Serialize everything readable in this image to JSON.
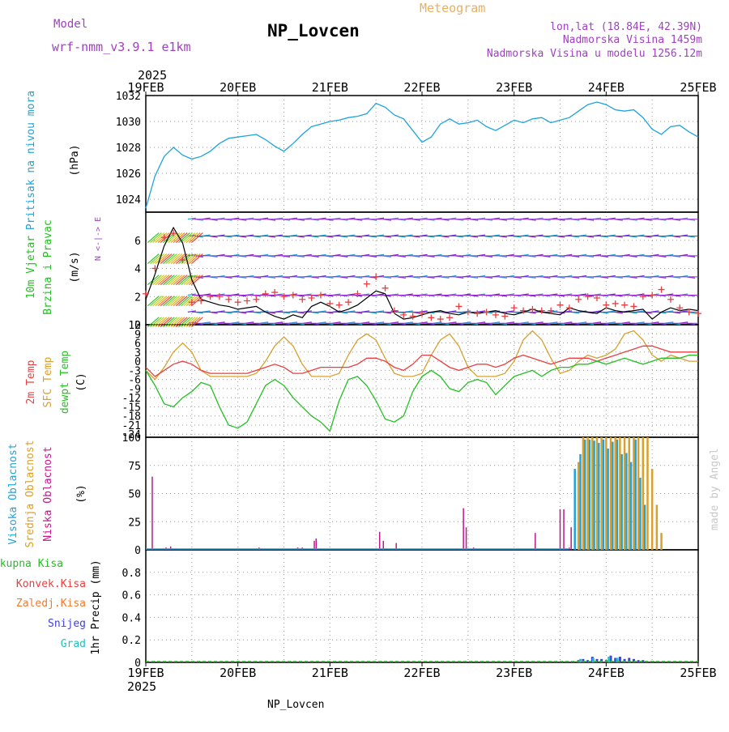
{
  "header": {
    "model_label": "Model",
    "model_name": "wrf-nmm_v3.9.1 e1km",
    "station": "NP_Lovcen",
    "product": "Meteogram",
    "coords": "lon,lat (18.84E, 42.39N)",
    "elevation": "Nadmorska Visina 1459m",
    "model_elevation": "Nadmorska Visina u modelu 1256.12m",
    "credit": "made by Angel",
    "footer_station": "NP_Lovcen"
  },
  "time_axis": {
    "year_top": "2025",
    "year_bottom": "2025",
    "ticks": [
      "19FEB",
      "20FEB",
      "21FEB",
      "22FEB",
      "23FEB",
      "24FEB",
      "25FEB"
    ]
  },
  "colors": {
    "pressure": "#1fa3dc",
    "wind_speed": "#000000",
    "gust_marker": "#e84040",
    "t2m": "#e84040",
    "tsfc": "#d9a030",
    "dewpoint": "#22c022",
    "cloud_high": "#1fa3dc",
    "cloud_mid": "#d9a030",
    "cloud_low": "#c0188a",
    "precip_total": "#22c022",
    "precip_conv": "#e84040",
    "precip_frozen": "#f07a30",
    "precip_snow": "#4040e0",
    "precip_graupel": "#20c0c0",
    "header_purple": "#a040c0",
    "meteogram_orange": "#e8b060"
  },
  "chart_data": [
    {
      "type": "line",
      "panel": "pressure",
      "ylabels": [
        "Pritisak na nivou mora",
        "(hPa)"
      ],
      "ylim": [
        1023,
        1032
      ],
      "yticks": [
        "1024",
        "1026",
        "1028",
        "1030",
        "1032"
      ],
      "series": [
        {
          "x": [
            0,
            0.1,
            0.2,
            0.3,
            0.4,
            0.5,
            0.6,
            0.7,
            0.8,
            0.9,
            1.0,
            1.1,
            1.2,
            1.3,
            1.4,
            1.5,
            1.6,
            1.7,
            1.8,
            1.9,
            2.0,
            2.1,
            2.2,
            2.3,
            2.4,
            2.5,
            2.6,
            2.7,
            2.8,
            2.9,
            3.0,
            3.1,
            3.2,
            3.3,
            3.4,
            3.5,
            3.6,
            3.7,
            3.8,
            3.9,
            4.0,
            4.1,
            4.2,
            4.3,
            4.4,
            4.5,
            4.6,
            4.7,
            4.8,
            4.9,
            5.0,
            5.1,
            5.2,
            5.3,
            5.4,
            5.5,
            5.6,
            5.7,
            5.8,
            5.9,
            6.0
          ],
          "values": [
            1023.3,
            1025.8,
            1027.3,
            1028.0,
            1027.4,
            1027.1,
            1027.3,
            1027.7,
            1028.3,
            1028.7,
            1028.8,
            1028.9,
            1029.0,
            1028.6,
            1028.1,
            1027.7,
            1028.3,
            1029.0,
            1029.6,
            1029.8,
            1030.0,
            1030.1,
            1030.3,
            1030.4,
            1030.6,
            1031.4,
            1031.1,
            1030.5,
            1030.2,
            1029.3,
            1028.4,
            1028.8,
            1029.8,
            1030.2,
            1029.8,
            1029.9,
            1030.1,
            1029.6,
            1029.3,
            1029.7,
            1030.1,
            1029.9,
            1030.2,
            1030.3,
            1029.9,
            1030.1,
            1030.3,
            1030.8,
            1031.3,
            1031.5,
            1031.3,
            1030.9,
            1030.8,
            1030.9,
            1030.3,
            1029.4,
            1029.0,
            1029.6,
            1029.7,
            1029.2,
            1028.8
          ]
        }
      ]
    },
    {
      "type": "line",
      "panel": "wind",
      "ylabels": [
        "10m Vjetar",
        "Brzina i Pravac",
        "(m/s)"
      ],
      "direction_key": "N  <-|->  E",
      "ylim": [
        0,
        8
      ],
      "yticks": [
        "0",
        "2",
        "4",
        "6"
      ],
      "barb_levels": [
        0.1,
        0.9,
        2.1,
        3.4,
        4.9,
        6.3,
        7.5
      ],
      "series": [
        {
          "name": "speed",
          "x": [
            0,
            0.1,
            0.2,
            0.3,
            0.4,
            0.5,
            0.6,
            0.7,
            0.8,
            0.9,
            1.0,
            1.1,
            1.2,
            1.3,
            1.4,
            1.5,
            1.6,
            1.7,
            1.8,
            1.9,
            2.0,
            2.1,
            2.2,
            2.3,
            2.4,
            2.5,
            2.6,
            2.7,
            2.8,
            2.9,
            3.0,
            3.1,
            3.2,
            3.3,
            3.4,
            3.5,
            3.6,
            3.7,
            3.8,
            3.9,
            4.0,
            4.1,
            4.2,
            4.3,
            4.4,
            4.5,
            4.6,
            4.7,
            4.8,
            4.9,
            5.0,
            5.1,
            5.2,
            5.3,
            5.4,
            5.5,
            5.6,
            5.7,
            5.8,
            5.9,
            6.0
          ],
          "values": [
            1.8,
            3.6,
            5.6,
            6.9,
            5.8,
            3.2,
            1.8,
            1.6,
            1.4,
            1.3,
            1.1,
            1.2,
            1.3,
            0.9,
            0.6,
            0.4,
            0.7,
            0.5,
            1.3,
            1.6,
            1.3,
            0.9,
            1.1,
            1.4,
            1.9,
            2.4,
            2.2,
            0.8,
            0.4,
            0.5,
            0.7,
            0.9,
            1.0,
            0.8,
            0.7,
            0.9,
            0.8,
            0.9,
            1.0,
            0.8,
            0.7,
            0.9,
            1.1,
            0.9,
            0.8,
            0.7,
            1.2,
            1.0,
            0.9,
            0.8,
            1.2,
            1.0,
            0.9,
            1.0,
            1.1,
            0.4,
            0.9,
            1.2,
            1.0,
            1.1,
            1.0
          ]
        },
        {
          "name": "gust",
          "x": [
            0,
            0.1,
            0.2,
            0.3,
            0.4,
            0.5,
            0.6,
            0.7,
            0.8,
            0.9,
            1.0,
            1.1,
            1.2,
            1.3,
            1.4,
            1.5,
            1.6,
            1.7,
            1.8,
            1.9,
            2.0,
            2.1,
            2.2,
            2.3,
            2.4,
            2.5,
            2.6,
            2.7,
            2.8,
            2.9,
            3.0,
            3.1,
            3.2,
            3.3,
            3.4,
            3.5,
            3.6,
            3.7,
            3.8,
            3.9,
            4.0,
            4.1,
            4.2,
            4.3,
            4.4,
            4.5,
            4.6,
            4.7,
            4.8,
            4.9,
            5.0,
            5.1,
            5.2,
            5.3,
            5.4,
            5.5,
            5.6,
            5.7,
            5.8,
            5.9,
            6.0
          ],
          "values": [
            2.2,
            4.0,
            6.2,
            6.5,
            4.6,
            1.6,
            1.7,
            2.0,
            2.0,
            1.8,
            1.6,
            1.7,
            1.8,
            2.2,
            2.3,
            2.0,
            2.1,
            1.8,
            1.9,
            2.1,
            1.5,
            1.4,
            1.6,
            2.2,
            2.9,
            3.4,
            2.6,
            1.0,
            0.7,
            0.6,
            0.8,
            0.5,
            0.4,
            0.5,
            1.3,
            0.9,
            0.8,
            0.9,
            0.7,
            0.6,
            1.2,
            1.0,
            1.1,
            1.0,
            1.0,
            1.4,
            1.2,
            1.8,
            2.0,
            1.9,
            1.4,
            1.5,
            1.4,
            1.3,
            2.0,
            2.1,
            2.5,
            1.8,
            1.2,
            0.9,
            0.8
          ]
        }
      ]
    },
    {
      "type": "line",
      "panel": "temperature",
      "ylabels": [
        "2m Temp",
        "SFC Temp",
        "dewpt Temp",
        "(C)"
      ],
      "ylim": [
        -25,
        12
      ],
      "yticks": [
        "12",
        "9",
        "6",
        "3",
        "0",
        "-3",
        "-6",
        "-9",
        "-12",
        "-15",
        "-18",
        "-21",
        "-24"
      ],
      "series": [
        {
          "name": "t2m",
          "x": [
            0,
            0.1,
            0.2,
            0.3,
            0.4,
            0.5,
            0.6,
            0.7,
            0.8,
            0.9,
            1.0,
            1.1,
            1.2,
            1.3,
            1.4,
            1.5,
            1.6,
            1.7,
            1.8,
            1.9,
            2.0,
            2.1,
            2.2,
            2.3,
            2.4,
            2.5,
            2.6,
            2.7,
            2.8,
            2.9,
            3.0,
            3.1,
            3.2,
            3.3,
            3.4,
            3.5,
            3.6,
            3.7,
            3.8,
            3.9,
            4.0,
            4.1,
            4.2,
            4.3,
            4.4,
            4.5,
            4.6,
            4.7,
            4.8,
            4.9,
            5.0,
            5.1,
            5.2,
            5.3,
            5.4,
            5.5,
            5.6,
            5.7,
            5.8,
            5.9,
            6.0
          ],
          "values": [
            -2,
            -5,
            -3,
            -1,
            0,
            -1,
            -3,
            -4,
            -4,
            -4,
            -4,
            -4,
            -3,
            -2,
            -1,
            -2,
            -4,
            -4,
            -3,
            -2,
            -2,
            -2,
            -2,
            -1,
            1,
            1,
            0,
            -2,
            -3,
            -1,
            2,
            2,
            0,
            -2,
            -3,
            -2,
            -1,
            -1,
            -2,
            -1,
            1,
            2,
            1,
            0,
            -1,
            0,
            1,
            1,
            1,
            0,
            1,
            2,
            3,
            4,
            5,
            5,
            4,
            3,
            3,
            3,
            3
          ]
        },
        {
          "name": "tsfc",
          "x": [
            0,
            0.1,
            0.2,
            0.3,
            0.4,
            0.5,
            0.6,
            0.7,
            0.8,
            0.9,
            1.0,
            1.1,
            1.2,
            1.3,
            1.4,
            1.5,
            1.6,
            1.7,
            1.8,
            1.9,
            2.0,
            2.1,
            2.2,
            2.3,
            2.4,
            2.5,
            2.6,
            2.7,
            2.8,
            2.9,
            3.0,
            3.1,
            3.2,
            3.3,
            3.4,
            3.5,
            3.6,
            3.7,
            3.8,
            3.9,
            4.0,
            4.1,
            4.2,
            4.3,
            4.4,
            4.5,
            4.6,
            4.7,
            4.8,
            4.9,
            5.0,
            5.1,
            5.2,
            5.3,
            5.4,
            5.5,
            5.6,
            5.7,
            5.8,
            5.9,
            6.0
          ],
          "values": [
            -3,
            -6,
            -2,
            3,
            6,
            3,
            -3,
            -5,
            -5,
            -5,
            -5,
            -5,
            -4,
            0,
            5,
            8,
            5,
            -1,
            -5,
            -5,
            -5,
            -4,
            2,
            7,
            9,
            7,
            1,
            -4,
            -5,
            -5,
            -4,
            2,
            7,
            9,
            5,
            -2,
            -5,
            -5,
            -5,
            -4,
            0,
            7,
            10,
            7,
            1,
            -4,
            -3,
            0,
            2,
            1,
            2,
            4,
            9,
            10,
            7,
            2,
            0,
            2,
            1,
            0,
            0
          ]
        },
        {
          "name": "dewpoint",
          "x": [
            0,
            0.1,
            0.2,
            0.3,
            0.4,
            0.5,
            0.6,
            0.7,
            0.8,
            0.9,
            1.0,
            1.1,
            1.2,
            1.3,
            1.4,
            1.5,
            1.6,
            1.7,
            1.8,
            1.9,
            2.0,
            2.1,
            2.2,
            2.3,
            2.4,
            2.5,
            2.6,
            2.7,
            2.8,
            2.9,
            3.0,
            3.1,
            3.2,
            3.3,
            3.4,
            3.5,
            3.6,
            3.7,
            3.8,
            3.9,
            4.0,
            4.1,
            4.2,
            4.3,
            4.4,
            4.5,
            4.6,
            4.7,
            4.8,
            4.9,
            5.0,
            5.1,
            5.2,
            5.3,
            5.4,
            5.5,
            5.6,
            5.7,
            5.8,
            5.9,
            6.0
          ],
          "values": [
            -3,
            -8,
            -14,
            -15,
            -12,
            -10,
            -7,
            -8,
            -15,
            -21,
            -22,
            -20,
            -14,
            -8,
            -6,
            -8,
            -12,
            -15,
            -18,
            -20,
            -23,
            -13,
            -6,
            -5,
            -8,
            -13,
            -19,
            -20,
            -18,
            -10,
            -5,
            -3,
            -5,
            -9,
            -10,
            -7,
            -6,
            -7,
            -11,
            -8,
            -5,
            -4,
            -3,
            -5,
            -3,
            -2,
            -2,
            -1,
            -1,
            0,
            -1,
            0,
            1,
            0,
            -1,
            0,
            1,
            1,
            1,
            2,
            2
          ]
        }
      ]
    },
    {
      "type": "bar",
      "panel": "clouds",
      "ylabels": [
        "Visoka Oblacnost",
        "Srednja Oblacnost",
        "Niska Oblacnost",
        "(%)"
      ],
      "ylim": [
        0,
        100
      ],
      "yticks": [
        "0",
        "25",
        "50",
        "75",
        "100"
      ],
      "series": [
        {
          "name": "low",
          "x": [
            0.07,
            0.22,
            0.27,
            1.23,
            1.65,
            1.7,
            1.83,
            1.85,
            2.54,
            2.58,
            2.72,
            3.45,
            3.48,
            3.56,
            4.23,
            4.5,
            4.54,
            4.6,
            4.62
          ],
          "values": [
            65,
            2,
            3,
            2,
            2,
            2,
            8,
            10,
            16,
            8,
            6,
            37,
            20,
            2,
            15,
            36,
            36,
            2,
            20
          ]
        },
        {
          "name": "high",
          "x": [
            4.66,
            4.72,
            4.77,
            4.82,
            4.87,
            4.92,
            4.97,
            5.02,
            5.07,
            5.12,
            5.17,
            5.22,
            5.27,
            5.32,
            5.37,
            5.42
          ],
          "values": [
            72,
            85,
            98,
            98,
            97,
            95,
            98,
            90,
            96,
            98,
            85,
            86,
            78,
            98,
            64,
            40
          ]
        },
        {
          "name": "mid",
          "x": [
            4.7,
            4.75,
            4.8,
            4.85,
            4.9,
            4.95,
            5.0,
            5.05,
            5.1,
            5.15,
            5.2,
            5.25,
            5.3,
            5.35,
            5.4,
            5.45,
            5.5,
            5.55,
            5.6
          ],
          "values": [
            78,
            100,
            100,
            100,
            100,
            100,
            100,
            100,
            100,
            100,
            100,
            100,
            100,
            100,
            100,
            100,
            72,
            40,
            15
          ]
        }
      ]
    },
    {
      "type": "bar",
      "panel": "precipitation",
      "ylabels": [
        "Ukupna Kisa",
        "Konvek.Kisa",
        "Zaledj.Kisa",
        "Snijeg",
        "Grad",
        "1hr Precip (mm)"
      ],
      "ylim": [
        0,
        1.0
      ],
      "yticks": [
        "0",
        "0.2",
        "0.4",
        "0.6",
        "0.8"
      ],
      "series": [
        {
          "name": "snow",
          "x": [
            4.7,
            4.75,
            4.8,
            4.85,
            4.9,
            4.95,
            5.0,
            5.05,
            5.1,
            5.15,
            5.2,
            5.25,
            5.3,
            5.35,
            5.4
          ],
          "values": [
            0.02,
            0.03,
            0.02,
            0.05,
            0.03,
            0.03,
            0.02,
            0.06,
            0.04,
            0.05,
            0.03,
            0.04,
            0.03,
            0.02,
            0.02
          ]
        },
        {
          "name": "graupel",
          "x": [
            4.72,
            4.86,
            5.03,
            5.12
          ],
          "values": [
            0.03,
            0.04,
            0.05,
            0.04
          ]
        }
      ]
    }
  ]
}
